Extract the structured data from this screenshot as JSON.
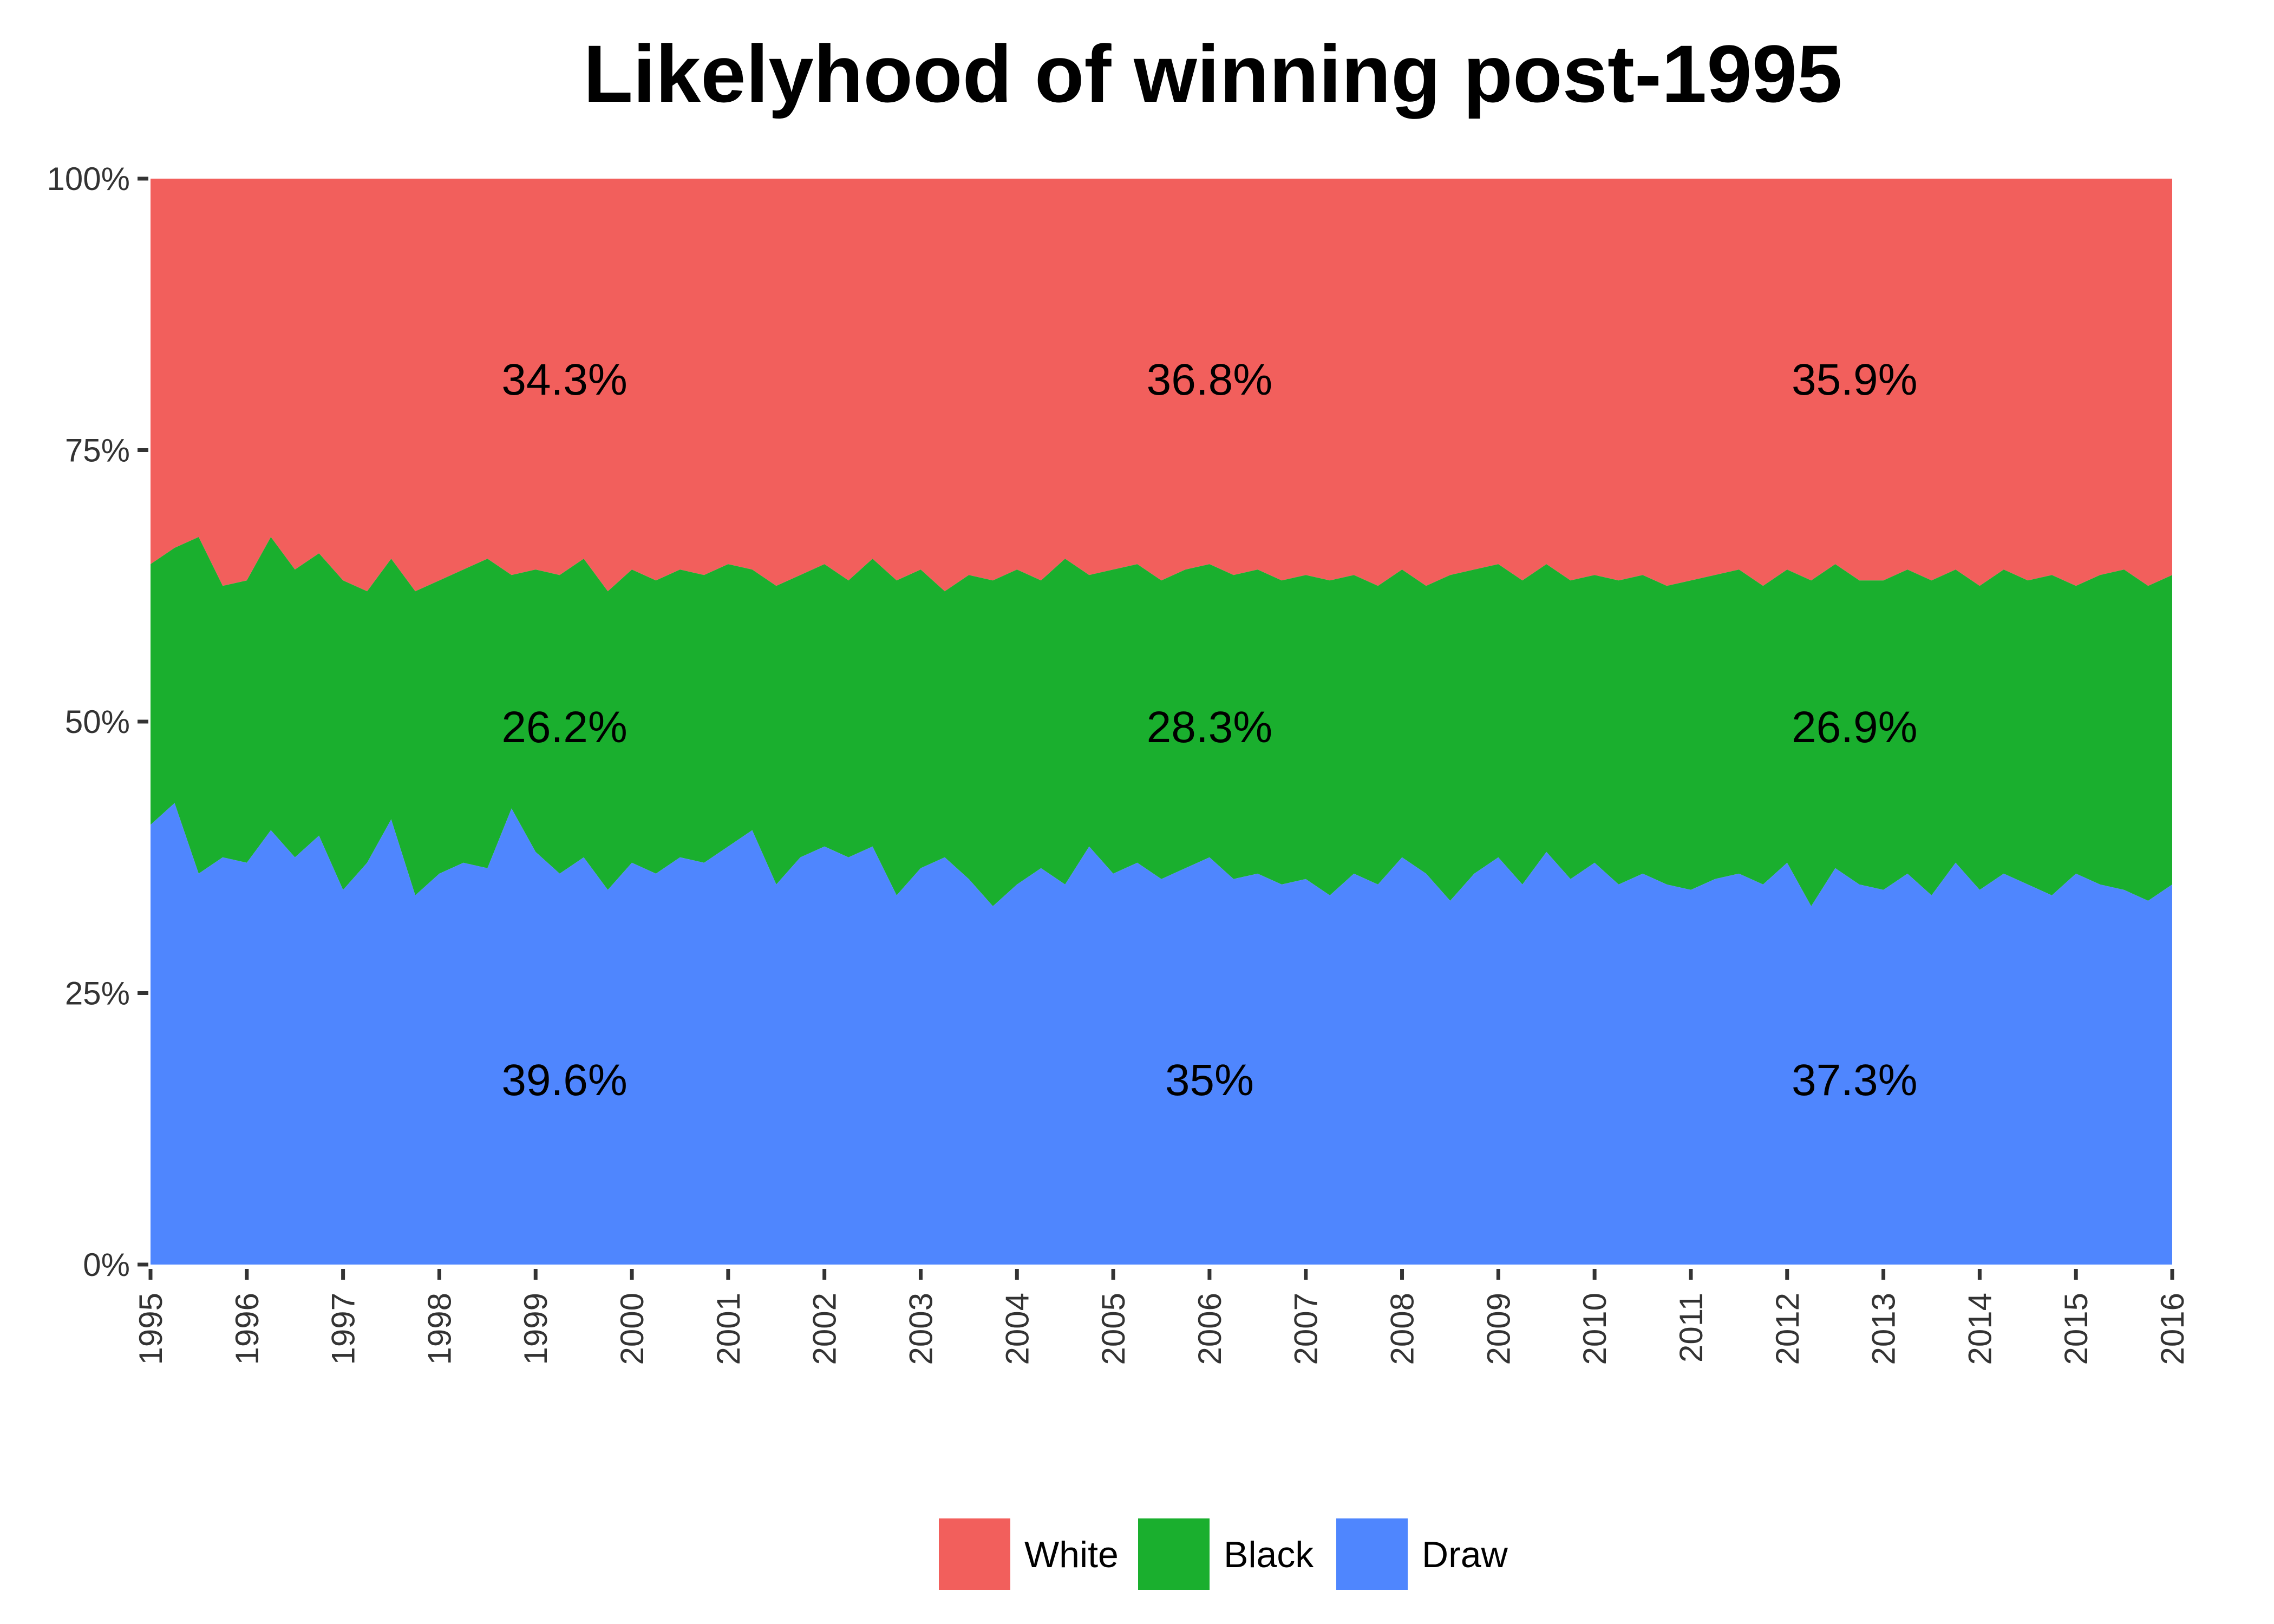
{
  "chart_data": {
    "type": "area",
    "stacked": true,
    "percent": true,
    "title": "Likelyhood of winning post-1995",
    "xlabel": "",
    "ylabel": "",
    "xlim": [
      1995.0,
      2016.0
    ],
    "ylim": [
      0,
      100
    ],
    "x_ticks": [
      "1995",
      "1996",
      "1997",
      "1998",
      "1999",
      "2000",
      "2001",
      "2002",
      "2003",
      "2004",
      "2005",
      "2006",
      "2007",
      "2008",
      "2009",
      "2010",
      "2011",
      "2012",
      "2013",
      "2014",
      "2015",
      "2016"
    ],
    "y_ticks": [
      "0%",
      "25%",
      "50%",
      "75%",
      "100%"
    ],
    "series_order_bottom_to_top": [
      "Draw",
      "Black",
      "White"
    ],
    "series": [
      {
        "name": "White",
        "color": "#F25F5C"
      },
      {
        "name": "Black",
        "color": "#1AAF2E"
      },
      {
        "name": "Draw",
        "color": "#4F86FE"
      }
    ],
    "x": [
      1995.0,
      1995.25,
      1995.5,
      1995.75,
      1996.0,
      1996.25,
      1996.5,
      1996.75,
      1997.0,
      1997.25,
      1997.5,
      1997.75,
      1998.0,
      1998.25,
      1998.5,
      1998.75,
      1999.0,
      1999.25,
      1999.5,
      1999.75,
      2000.0,
      2000.25,
      2000.5,
      2000.75,
      2001.0,
      2001.25,
      2001.5,
      2001.75,
      2002.0,
      2002.25,
      2002.5,
      2002.75,
      2003.0,
      2003.25,
      2003.5,
      2003.75,
      2004.0,
      2004.25,
      2004.5,
      2004.75,
      2005.0,
      2005.25,
      2005.5,
      2005.75,
      2006.0,
      2006.25,
      2006.5,
      2006.75,
      2007.0,
      2007.25,
      2007.5,
      2007.75,
      2008.0,
      2008.25,
      2008.5,
      2008.75,
      2009.0,
      2009.25,
      2009.5,
      2009.75,
      2010.0,
      2010.25,
      2010.5,
      2010.75,
      2011.0,
      2011.25,
      2011.5,
      2011.75,
      2012.0,
      2012.25,
      2012.5,
      2012.75,
      2013.0,
      2013.25,
      2013.5,
      2013.75,
      2014.0,
      2014.25,
      2014.5,
      2014.75,
      2015.0,
      2015.25,
      2015.5,
      2015.75,
      2016.0
    ],
    "draw_pct": [
      40.5,
      42.5,
      36,
      37.5,
      37,
      40,
      37.5,
      39.5,
      34.5,
      37,
      41,
      34,
      36,
      37,
      36.5,
      42,
      38,
      36,
      37.5,
      34.5,
      37,
      36,
      37.5,
      37,
      38.5,
      40,
      35,
      37.5,
      38.5,
      37.5,
      38.5,
      34,
      36.5,
      37.5,
      35.5,
      33,
      35,
      36.5,
      35,
      38.5,
      36,
      37,
      35.5,
      36.5,
      37.5,
      35.5,
      36,
      35,
      35.5,
      34,
      36,
      35,
      37.5,
      36,
      33.5,
      36,
      37.5,
      35,
      38,
      35.5,
      37,
      35,
      36,
      35,
      34.5,
      35.5,
      36,
      35,
      37,
      33,
      36.5,
      35,
      34.5,
      36,
      34,
      37,
      34.5,
      36,
      35,
      34,
      36,
      35,
      34.5,
      33.5,
      35
    ],
    "draw_plus_black_pct": [
      64.5,
      66,
      67,
      62.5,
      63,
      67,
      64,
      65.5,
      63,
      62,
      65,
      62,
      63,
      64,
      65,
      63.5,
      64,
      63.5,
      65,
      62,
      64,
      63,
      64,
      63.5,
      64.5,
      64,
      62.5,
      63.5,
      64.5,
      63,
      65,
      63,
      64,
      62,
      63.5,
      63,
      64,
      63,
      65,
      63.5,
      64,
      64.5,
      63,
      64,
      64.5,
      63.5,
      64,
      63,
      63.5,
      63,
      63.5,
      62.5,
      64,
      62.5,
      63.5,
      64,
      64.5,
      63,
      64.5,
      63,
      63.5,
      63,
      63.5,
      62.5,
      63,
      63.5,
      64,
      62.5,
      64,
      63,
      64.5,
      63,
      63,
      64,
      63,
      64,
      62.5,
      64,
      63,
      63.5,
      62.5,
      63.5,
      64,
      62.5,
      63.5
    ],
    "annotations": [
      {
        "x": 1999.3,
        "y": 81.5,
        "text": "34.3%"
      },
      {
        "x": 2006.0,
        "y": 81.5,
        "text": "36.8%"
      },
      {
        "x": 2012.7,
        "y": 81.5,
        "text": "35.9%"
      },
      {
        "x": 1999.3,
        "y": 49.5,
        "text": "26.2%"
      },
      {
        "x": 2006.0,
        "y": 49.5,
        "text": "28.3%"
      },
      {
        "x": 2012.7,
        "y": 49.5,
        "text": "26.9%"
      },
      {
        "x": 1999.3,
        "y": 17.0,
        "text": "39.6%"
      },
      {
        "x": 2006.0,
        "y": 17.0,
        "text": "35%"
      },
      {
        "x": 2012.7,
        "y": 17.0,
        "text": "37.3%"
      }
    ],
    "legend": {
      "position": "bottom",
      "items": [
        {
          "label": "White",
          "color": "#F25F5C"
        },
        {
          "label": "Black",
          "color": "#1AAF2E"
        },
        {
          "label": "Draw",
          "color": "#4F86FE"
        }
      ]
    },
    "grid": false
  }
}
